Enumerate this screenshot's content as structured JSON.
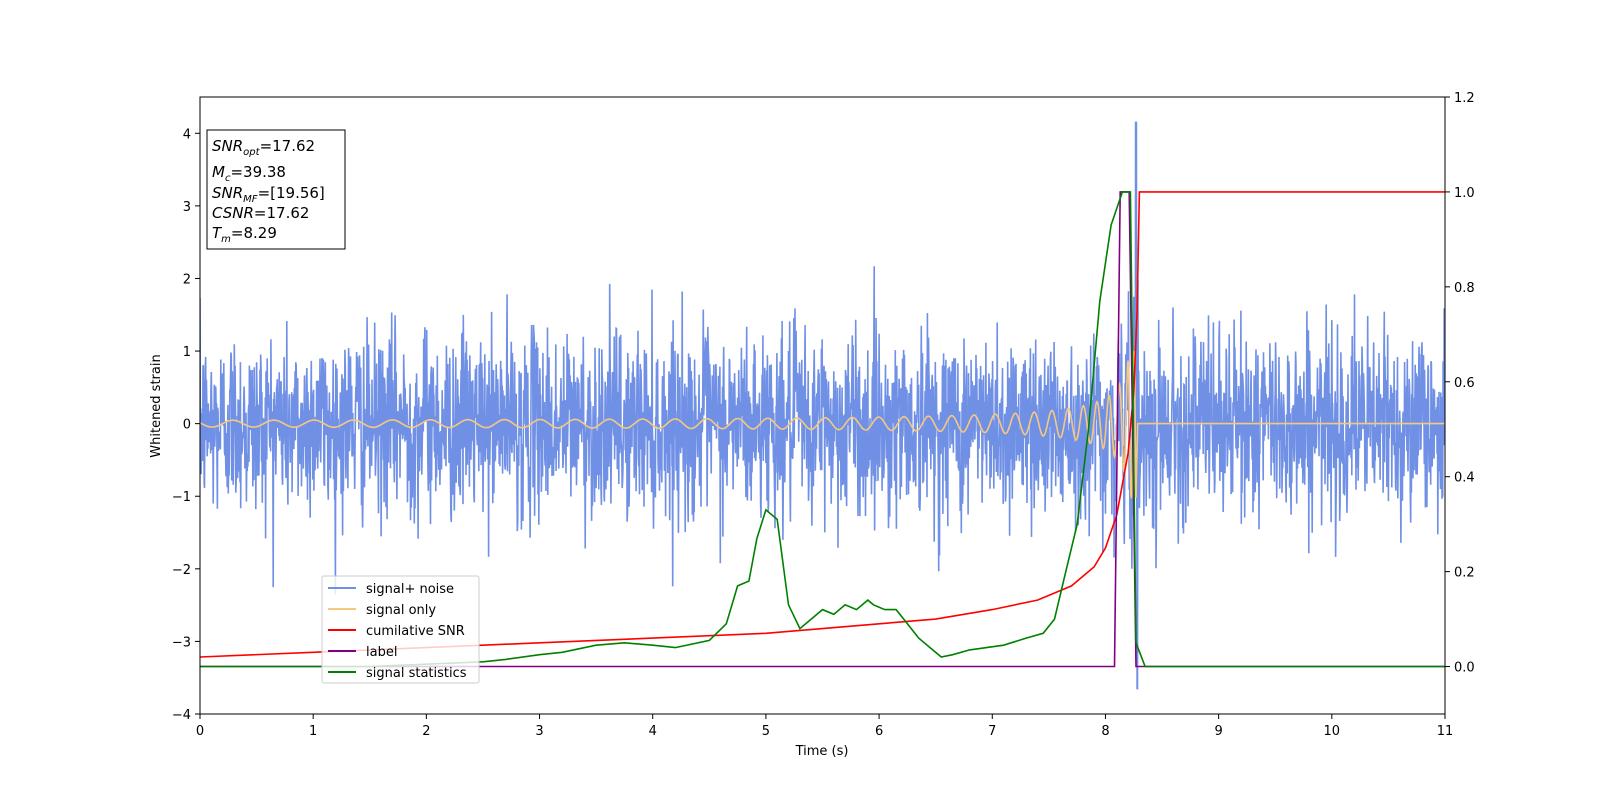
{
  "chart_data": {
    "type": "line",
    "xlabel": "Time (s)",
    "ylabel": "Whitened strain",
    "xlim": [
      0,
      11
    ],
    "ylim": [
      -4,
      4.5
    ],
    "ylim_right": [
      -0.1,
      1.2
    ],
    "x_ticks": [
      "0",
      "1",
      "2",
      "3",
      "4",
      "5",
      "6",
      "7",
      "8",
      "9",
      "10",
      "11"
    ],
    "y_ticks": [
      "−4",
      "−3",
      "−2",
      "−1",
      "0",
      "1",
      "2",
      "3",
      "4"
    ],
    "y_right_ticks": [
      "0.0",
      "0.2",
      "0.4",
      "0.6",
      "0.8",
      "1.0",
      "1.2"
    ],
    "grid": false,
    "legend_position": "lower-left",
    "info_box": {
      "snr_opt": {
        "base": "SNR",
        "sub": "opt",
        "value": "=17.62"
      },
      "mc": {
        "base": "M",
        "sub": "c",
        "value": "=39.38"
      },
      "snr_mf": {
        "base": "SNR",
        "sub": "MF",
        "value": "=[19.56]"
      },
      "csnr": {
        "base": "CSNR",
        "value": "=17.62"
      },
      "tm": {
        "base": "T",
        "sub": "m",
        "value": "=8.29"
      }
    },
    "series": [
      {
        "name": "signal+ noise",
        "color": "#7090e6",
        "axis": "left",
        "description": "noisy whitened strain, amplitude about ±1.3 typical with spikes to ±2.5, large spike to 4.15 and -3.65 near t=8.28"
      },
      {
        "name": "signal only",
        "color": "#f5c880",
        "axis": "left",
        "description": "chirp oscillation, near zero until ~6 s, growing to ±1 at t≈8.28 then zero"
      },
      {
        "name": "cumilative SNR",
        "color": "#ff0000",
        "axis": "right",
        "x": [
          0,
          1,
          2,
          3,
          4,
          5,
          6,
          6.5,
          7,
          7.4,
          7.7,
          7.9,
          8.0,
          8.1,
          8.2,
          8.25,
          8.28,
          8.3,
          11
        ],
        "y": [
          0.02,
          0.03,
          0.04,
          0.05,
          0.06,
          0.07,
          0.09,
          0.1,
          0.12,
          0.14,
          0.17,
          0.21,
          0.25,
          0.32,
          0.45,
          0.58,
          0.75,
          1.0,
          1.0
        ]
      },
      {
        "name": "label",
        "color": "#800080",
        "axis": "right",
        "x": [
          0,
          8.08,
          8.13,
          8.21,
          8.27,
          11
        ],
        "y": [
          0,
          0,
          1,
          1,
          0,
          0
        ]
      },
      {
        "name": "signal statistics",
        "color": "#008000",
        "axis": "right",
        "x": [
          0,
          0.5,
          1,
          1.5,
          2,
          2.5,
          2.7,
          3.0,
          3.2,
          3.5,
          3.75,
          4.0,
          4.2,
          4.5,
          4.65,
          4.75,
          4.85,
          4.92,
          5.0,
          5.1,
          5.2,
          5.3,
          5.4,
          5.5,
          5.6,
          5.7,
          5.8,
          5.9,
          5.95,
          6.05,
          6.15,
          6.25,
          6.35,
          6.45,
          6.55,
          6.65,
          6.8,
          6.95,
          7.1,
          7.3,
          7.45,
          7.55,
          7.65,
          7.75,
          7.85,
          7.95,
          8.05,
          8.15,
          8.22,
          8.27,
          8.35,
          11
        ],
        "y": [
          0.0,
          0.0,
          0.0,
          0.0,
          0.005,
          0.01,
          0.015,
          0.025,
          0.03,
          0.045,
          0.05,
          0.045,
          0.04,
          0.055,
          0.09,
          0.17,
          0.18,
          0.27,
          0.33,
          0.31,
          0.13,
          0.08,
          0.1,
          0.12,
          0.11,
          0.13,
          0.12,
          0.14,
          0.13,
          0.12,
          0.12,
          0.09,
          0.06,
          0.04,
          0.02,
          0.025,
          0.035,
          0.04,
          0.045,
          0.06,
          0.07,
          0.1,
          0.2,
          0.3,
          0.5,
          0.77,
          0.93,
          1.0,
          1.0,
          0.05,
          0.0,
          0.0
        ]
      }
    ]
  }
}
